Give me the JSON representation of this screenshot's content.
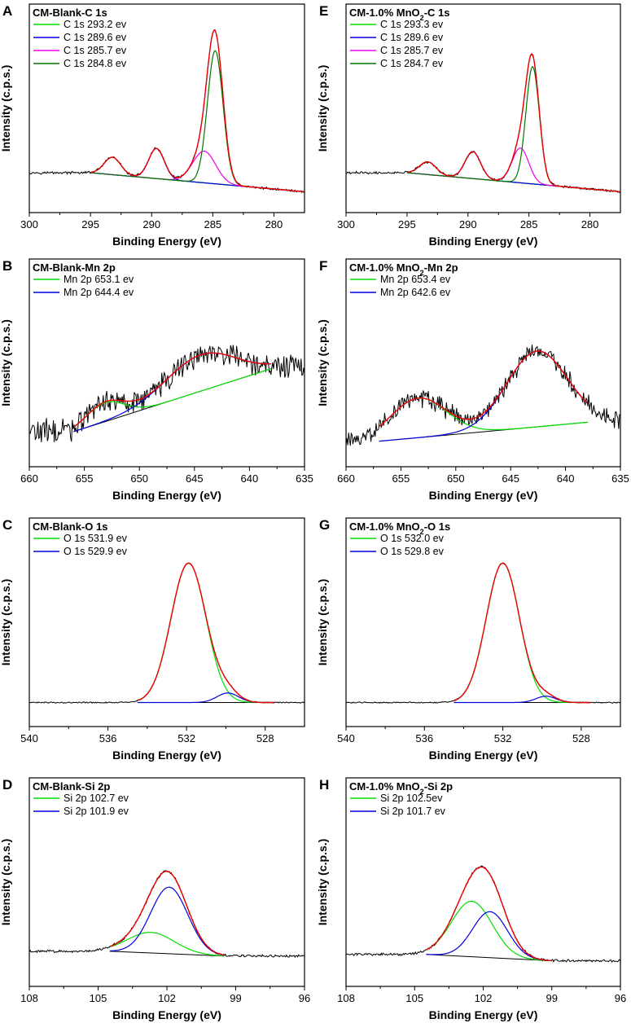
{
  "chart_data": [
    {
      "type": "line",
      "panel": "A",
      "title": "CM-Blank-C 1s",
      "xlabel": "Binding Energy (eV)",
      "ylabel": "Intensity (c.p.s.)",
      "xlim": [
        300,
        277.5
      ],
      "xticks": [
        300,
        295,
        290,
        285,
        280
      ],
      "baseline": [
        295,
        277.5,
        0.12,
        0.0
      ],
      "noise": 0.006,
      "legend": [
        {
          "label": "C 1s 293.2 ev",
          "color": "#00dd00"
        },
        {
          "label": "C 1s 289.6 ev",
          "color": "#0000dd"
        },
        {
          "label": "C 1s 285.7 ev",
          "color": "#ee00ee"
        },
        {
          "label": "C 1s 284.8 ev",
          "color": "#007700"
        }
      ],
      "peaks": [
        {
          "center": 293.2,
          "height": 0.11,
          "fwhm": 1.6
        },
        {
          "center": 289.6,
          "height": 0.19,
          "fwhm": 1.5
        },
        {
          "center": 285.7,
          "height": 0.2,
          "fwhm": 2.2
        },
        {
          "center": 284.8,
          "height": 0.84,
          "fwhm": 1.5
        }
      ]
    },
    {
      "type": "line",
      "panel": "B",
      "title": "CM-Blank-Mn 2p",
      "xlabel": "Binding Energy (eV)",
      "ylabel": "Intensity (c.p.s.)",
      "xlim": [
        660,
        635
      ],
      "xticks": [
        660,
        655,
        650,
        645,
        640,
        635
      ],
      "baseline": [
        656,
        638,
        0.09,
        0.49
      ],
      "noise": 0.06,
      "legend": [
        {
          "label": "Mn 2p 653.1 ev",
          "color": "#00dd00"
        },
        {
          "label": "Mn 2p 644.4 ev",
          "color": "#0000dd"
        }
      ],
      "peaks": [
        {
          "center": 653.1,
          "height": 0.12,
          "fwhm": 4.0
        },
        {
          "center": 644.4,
          "height": 0.23,
          "fwhm": 7.5
        }
      ]
    },
    {
      "type": "line",
      "panel": "C",
      "title": "CM-Blank-O 1s",
      "xlabel": "Binding Energy (eV)",
      "ylabel": "Intensity (c.p.s.)",
      "xlim": [
        540,
        526
      ],
      "xticks": [
        540,
        536,
        532,
        528
      ],
      "baseline": [
        534.5,
        527.5,
        0.02,
        0.02
      ],
      "noise": 0.003,
      "legend": [
        {
          "label": "O 1s 531.9 ev",
          "color": "#00dd00"
        },
        {
          "label": "O 1s 529.9 ev",
          "color": "#0000dd"
        }
      ],
      "peaks": [
        {
          "center": 531.9,
          "height": 0.88,
          "fwhm": 2.1
        },
        {
          "center": 529.9,
          "height": 0.06,
          "fwhm": 1.3
        }
      ]
    },
    {
      "type": "line",
      "panel": "D",
      "title": "CM-Blank-Si 2p",
      "xlabel": "Binding Energy (eV)",
      "ylabel": "Intensity (c.p.s.)",
      "xlim": [
        108,
        96
      ],
      "xticks": [
        108,
        105,
        102,
        99,
        96
      ],
      "baseline": [
        104.5,
        99.5,
        0.09,
        0.06
      ],
      "noise": 0.006,
      "legend": [
        {
          "label": "Si 2p 102.7 ev",
          "color": "#00dd00"
        },
        {
          "label": "Si 2p 101.9 ev",
          "color": "#0000dd"
        }
      ],
      "peaks": [
        {
          "center": 102.7,
          "height": 0.13,
          "fwhm": 2.4
        },
        {
          "center": 101.9,
          "height": 0.42,
          "fwhm": 1.9
        }
      ]
    },
    {
      "type": "line",
      "panel": "E",
      "title": "CM-1.0% MnO2-C 1s",
      "xlabel": "Binding Energy (eV)",
      "ylabel": "Intensity (c.p.s.)",
      "xlim": [
        300,
        277.5
      ],
      "xticks": [
        300,
        295,
        290,
        285,
        280
      ],
      "baseline": [
        295,
        277.5,
        0.12,
        0.0
      ],
      "noise": 0.006,
      "legend": [
        {
          "label": "C 1s 293.3 ev",
          "color": "#00dd00"
        },
        {
          "label": "C 1s 289.6 ev",
          "color": "#0000dd"
        },
        {
          "label": "C 1s 285.7 ev",
          "color": "#ee00ee"
        },
        {
          "label": "C 1s 284.7 ev",
          "color": "#007700"
        }
      ],
      "peaks": [
        {
          "center": 293.3,
          "height": 0.08,
          "fwhm": 1.6
        },
        {
          "center": 289.6,
          "height": 0.17,
          "fwhm": 1.5
        },
        {
          "center": 285.7,
          "height": 0.22,
          "fwhm": 1.6
        },
        {
          "center": 284.7,
          "height": 0.74,
          "fwhm": 1.3
        }
      ]
    },
    {
      "type": "line",
      "panel": "F",
      "title": "CM-1.0% MnO2-Mn 2p",
      "xlabel": "Binding Energy (eV)",
      "ylabel": "Intensity (c.p.s.)",
      "xlim": [
        660,
        635
      ],
      "xticks": [
        660,
        655,
        650,
        645,
        640,
        635
      ],
      "baseline": [
        657,
        638,
        0.03,
        0.15
      ],
      "noise": 0.045,
      "legend": [
        {
          "label": "Mn 2p 653.4 ev",
          "color": "#00dd00"
        },
        {
          "label": "Mn 2p 642.6 ev",
          "color": "#0000dd"
        }
      ],
      "peaks": [
        {
          "center": 653.4,
          "height": 0.25,
          "fwhm": 6.0
        },
        {
          "center": 642.6,
          "height": 0.48,
          "fwhm": 6.5
        }
      ]
    },
    {
      "type": "line",
      "panel": "G",
      "title": "CM-1.0% MnO2-O 1s",
      "xlabel": "Binding Energy (eV)",
      "ylabel": "Intensity (c.p.s.)",
      "xlim": [
        540,
        526
      ],
      "xticks": [
        540,
        536,
        532,
        528
      ],
      "baseline": [
        534.5,
        527.5,
        0.02,
        0.02
      ],
      "noise": 0.003,
      "legend": [
        {
          "label": "O 1s 532.0 ev",
          "color": "#00dd00"
        },
        {
          "label": "O 1s 529.8 ev",
          "color": "#0000dd"
        }
      ],
      "peaks": [
        {
          "center": 532.0,
          "height": 0.88,
          "fwhm": 2.0
        },
        {
          "center": 529.8,
          "height": 0.04,
          "fwhm": 1.2
        }
      ]
    },
    {
      "type": "line",
      "panel": "H",
      "title": "CM-1.0% MnO2-Si 2p",
      "xlabel": "Binding Energy (eV)",
      "ylabel": "Intensity (c.p.s.)",
      "xlim": [
        108,
        96
      ],
      "xticks": [
        108,
        105,
        102,
        99,
        96
      ],
      "baseline": [
        104.5,
        99.0,
        0.07,
        0.03
      ],
      "noise": 0.006,
      "legend": [
        {
          "label": "Si 2p 102.5ev",
          "color": "#00dd00"
        },
        {
          "label": "Si 2p 101.7 ev",
          "color": "#0000dd"
        }
      ],
      "peaks": [
        {
          "center": 102.5,
          "height": 0.35,
          "fwhm": 2.1
        },
        {
          "center": 101.7,
          "height": 0.29,
          "fwhm": 1.8
        }
      ]
    }
  ]
}
